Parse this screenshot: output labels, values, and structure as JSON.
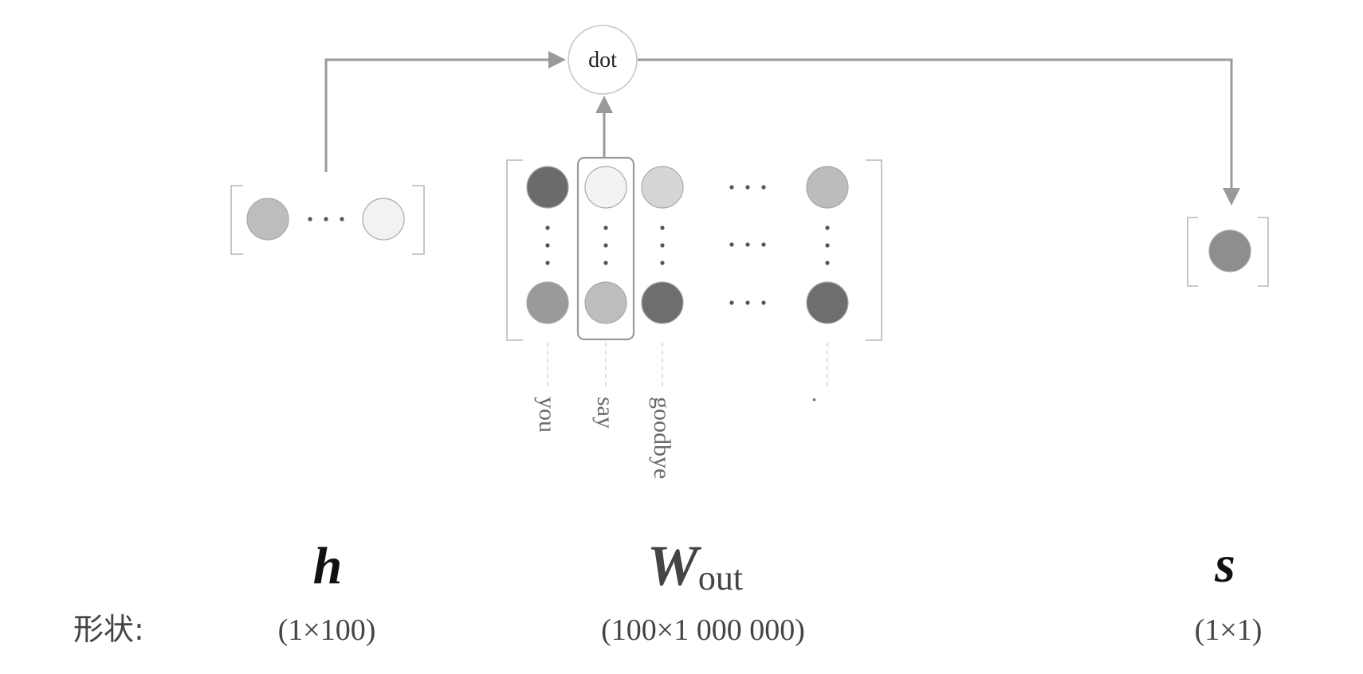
{
  "operation": {
    "label": "dot"
  },
  "row_label": "形状:",
  "h": {
    "symbol": "h",
    "shape": "(1×100)",
    "cells": [
      "#bdbdbd",
      "#f2f2f2"
    ]
  },
  "w_out": {
    "symbol": "W",
    "subscript": "out",
    "shape": "(100×1 000 000)",
    "top_row": [
      "#6b6b6b",
      "#f3f3f3",
      "#d6d6d6",
      "#bcbcbc"
    ],
    "bottom_row": [
      "#9a9a9a",
      "#bdbdbd",
      "#6e6e6e",
      "#6e6e6e"
    ],
    "column_words": [
      "you",
      "say",
      "goodbye",
      "."
    ],
    "selected_column": "say"
  },
  "s": {
    "symbol": "s",
    "shape": "(1×1)",
    "cell": "#8e8e8e"
  }
}
